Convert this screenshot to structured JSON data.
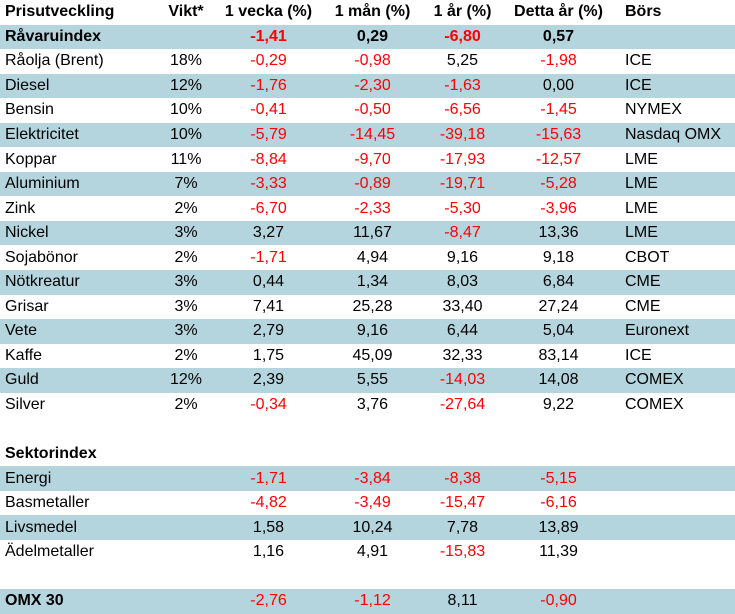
{
  "title": "Prisutveckling",
  "colors": {
    "shaded_row": "#b4d5de",
    "negative_value": "#ff0000",
    "text": "#000000",
    "background": "#ffffff"
  },
  "chart_data": {
    "type": "table",
    "title": "Prisutveckling",
    "columns": [
      "Prisutveckling",
      "Vikt*",
      "1 vecka (%)",
      "1 mån (%)",
      "1 år (%)",
      "Detta år (%)",
      "Börs"
    ],
    "rows": [
      {
        "cells": [
          "Råvaruindex",
          "",
          "-1,41",
          "0,29",
          "-6,80",
          "0,57",
          ""
        ],
        "shaded": true,
        "bold": "row"
      },
      {
        "cells": [
          "Råolja (Brent)",
          "18%",
          "-0,29",
          "-0,98",
          "5,25",
          "-1,98",
          "ICE"
        ],
        "shaded": false,
        "bold": null
      },
      {
        "cells": [
          "Diesel",
          "12%",
          "-1,76",
          "-2,30",
          "-1,63",
          "0,00",
          "ICE"
        ],
        "shaded": true,
        "bold": null
      },
      {
        "cells": [
          "Bensin",
          "10%",
          "-0,41",
          "-0,50",
          "-6,56",
          "-1,45",
          "NYMEX"
        ],
        "shaded": false,
        "bold": null
      },
      {
        "cells": [
          "Elektricitet",
          "10%",
          "-5,79",
          "-14,45",
          "-39,18",
          "-15,63",
          "Nasdaq OMX"
        ],
        "shaded": true,
        "bold": null
      },
      {
        "cells": [
          "Koppar",
          "11%",
          "-8,84",
          "-9,70",
          "-17,93",
          "-12,57",
          "LME"
        ],
        "shaded": false,
        "bold": null
      },
      {
        "cells": [
          "Aluminium",
          "7%",
          "-3,33",
          "-0,89",
          "-19,71",
          "-5,28",
          "LME"
        ],
        "shaded": true,
        "bold": null
      },
      {
        "cells": [
          "Zink",
          "2%",
          "-6,70",
          "-2,33",
          "-5,30",
          "-3,96",
          "LME"
        ],
        "shaded": false,
        "bold": null
      },
      {
        "cells": [
          "Nickel",
          "3%",
          "3,27",
          "11,67",
          "-8,47",
          "13,36",
          "LME"
        ],
        "shaded": true,
        "bold": null
      },
      {
        "cells": [
          "Sojabönor",
          "2%",
          "-1,71",
          "4,94",
          "9,16",
          "9,18",
          "CBOT"
        ],
        "shaded": false,
        "bold": null
      },
      {
        "cells": [
          "Nötkreatur",
          "3%",
          "0,44",
          "1,34",
          "8,03",
          "6,84",
          "CME"
        ],
        "shaded": true,
        "bold": null
      },
      {
        "cells": [
          "Grisar",
          "3%",
          "7,41",
          "25,28",
          "33,40",
          "27,24",
          "CME"
        ],
        "shaded": false,
        "bold": null
      },
      {
        "cells": [
          "Vete",
          "3%",
          "2,79",
          "9,16",
          "6,44",
          "5,04",
          "Euronext"
        ],
        "shaded": true,
        "bold": null
      },
      {
        "cells": [
          "Kaffe",
          "2%",
          "1,75",
          "45,09",
          "32,33",
          "83,14",
          "ICE"
        ],
        "shaded": false,
        "bold": null
      },
      {
        "cells": [
          "Guld",
          "12%",
          "2,39",
          "5,55",
          "-14,03",
          "14,08",
          "COMEX"
        ],
        "shaded": true,
        "bold": null
      },
      {
        "cells": [
          "Silver",
          "2%",
          "-0,34",
          "3,76",
          "-27,64",
          "9,22",
          "COMEX"
        ],
        "shaded": false,
        "bold": null
      },
      {
        "cells": [
          "",
          "",
          "",
          "",
          "",
          "",
          ""
        ],
        "shaded": false,
        "bold": null
      },
      {
        "cells": [
          "Sektorindex",
          "",
          "",
          "",
          "",
          "",
          ""
        ],
        "shaded": false,
        "bold": "label"
      },
      {
        "cells": [
          "Energi",
          "",
          "-1,71",
          "-3,84",
          "-8,38",
          "-5,15",
          ""
        ],
        "shaded": true,
        "bold": null
      },
      {
        "cells": [
          "Basmetaller",
          "",
          "-4,82",
          "-3,49",
          "-15,47",
          "-6,16",
          ""
        ],
        "shaded": false,
        "bold": null
      },
      {
        "cells": [
          "Livsmedel",
          "",
          "1,58",
          "10,24",
          "7,78",
          "13,89",
          ""
        ],
        "shaded": true,
        "bold": null
      },
      {
        "cells": [
          "Ädelmetaller",
          "",
          "1,16",
          "4,91",
          "-15,83",
          "11,39",
          ""
        ],
        "shaded": false,
        "bold": null
      },
      {
        "cells": [
          "",
          "",
          "",
          "",
          "",
          "",
          ""
        ],
        "shaded": false,
        "bold": null
      },
      {
        "cells": [
          "OMX 30",
          "",
          "-2,76",
          "-1,12",
          "8,11",
          "-0,90",
          ""
        ],
        "shaded": true,
        "bold": "label"
      }
    ]
  }
}
